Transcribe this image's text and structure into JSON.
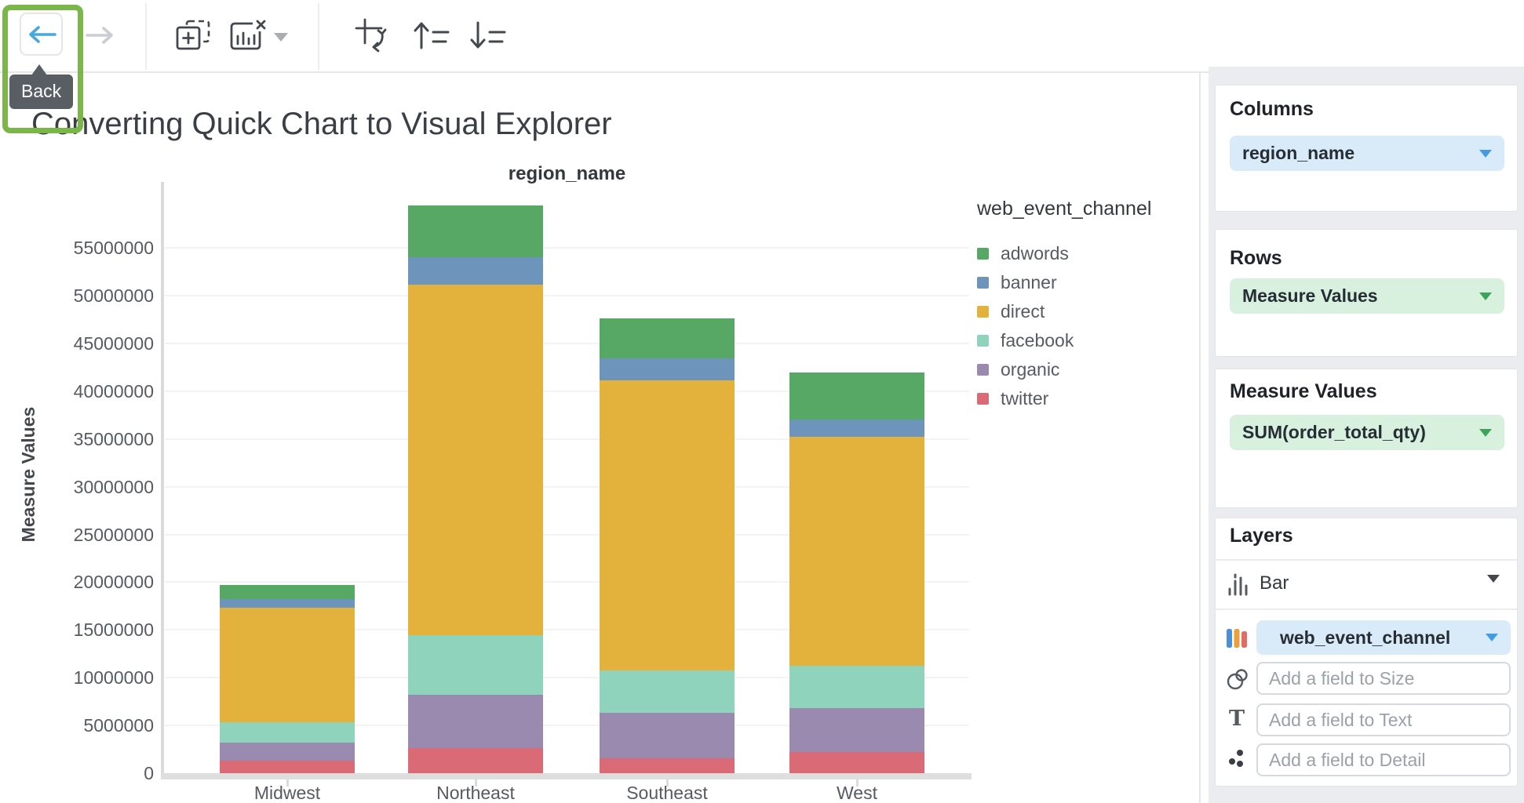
{
  "toolbar": {
    "back_tooltip": "Back",
    "icons": [
      "back-icon",
      "forward-icon",
      "add-element-icon",
      "delete-chart-icon",
      "dropdown-caret-icon",
      "swap-axes-icon",
      "sort-ascending-icon",
      "sort-descending-icon"
    ]
  },
  "page": {
    "title": "Converting Quick Chart to Visual Explorer"
  },
  "chart_data": {
    "type": "bar",
    "stacked": true,
    "title": "region_name",
    "ylabel": "Measure Values",
    "legend_title": "web_event_channel",
    "legend_position": "right",
    "grid": true,
    "categories": [
      "Midwest",
      "Northeast",
      "Southeast",
      "West"
    ],
    "series": [
      {
        "name": "adwords",
        "color": "#56A864",
        "values": [
          1500000,
          5400000,
          4200000,
          4900000
        ]
      },
      {
        "name": "banner",
        "color": "#6D94BA",
        "values": [
          900000,
          2900000,
          2300000,
          1800000
        ]
      },
      {
        "name": "direct",
        "color": "#E2B23C",
        "values": [
          12000000,
          36700000,
          30400000,
          24000000
        ]
      },
      {
        "name": "facebook",
        "color": "#8FD3BD",
        "values": [
          2100000,
          6200000,
          4400000,
          4400000
        ]
      },
      {
        "name": "organic",
        "color": "#9A8AAF",
        "values": [
          1900000,
          5600000,
          4800000,
          4600000
        ]
      },
      {
        "name": "twitter",
        "color": "#D96A76",
        "values": [
          1300000,
          2600000,
          1600000,
          2200000
        ]
      }
    ],
    "stack_order_bottom_to_top": [
      "twitter",
      "organic",
      "facebook",
      "direct",
      "banner",
      "adwords"
    ],
    "y_ticks": [
      0,
      5000000,
      10000000,
      15000000,
      20000000,
      25000000,
      30000000,
      35000000,
      40000000,
      45000000,
      50000000,
      55000000
    ],
    "ylim": [
      0,
      60000000
    ]
  },
  "panel": {
    "columns": {
      "header": "Columns",
      "pill": "region_name"
    },
    "rows": {
      "header": "Rows",
      "pill": "Measure Values"
    },
    "measure_values": {
      "header": "Measure Values",
      "pill": "SUM(order_total_qty)"
    },
    "layers": {
      "header": "Layers",
      "mark_type": "Bar",
      "color_field": "web_event_channel",
      "size_placeholder": "Add a field to Size",
      "text_placeholder": "Add a field to Text",
      "detail_placeholder": "Add a field to Detail"
    }
  },
  "colors": {
    "annotation_green": "#7AB648",
    "tooltip_bg": "#585E63",
    "back_arrow_blue": "#47A9DC",
    "disabled_icon": "#CACDD1",
    "toolbar_icon": "#43484E",
    "pill_blue_bg": "#D9EAF8",
    "pill_green_bg": "#D8F0DE",
    "caret_blue": "#449BE4",
    "caret_green": "#3EA45A",
    "panel_bg": "#EAECEF",
    "axis_text": "#565B61"
  }
}
